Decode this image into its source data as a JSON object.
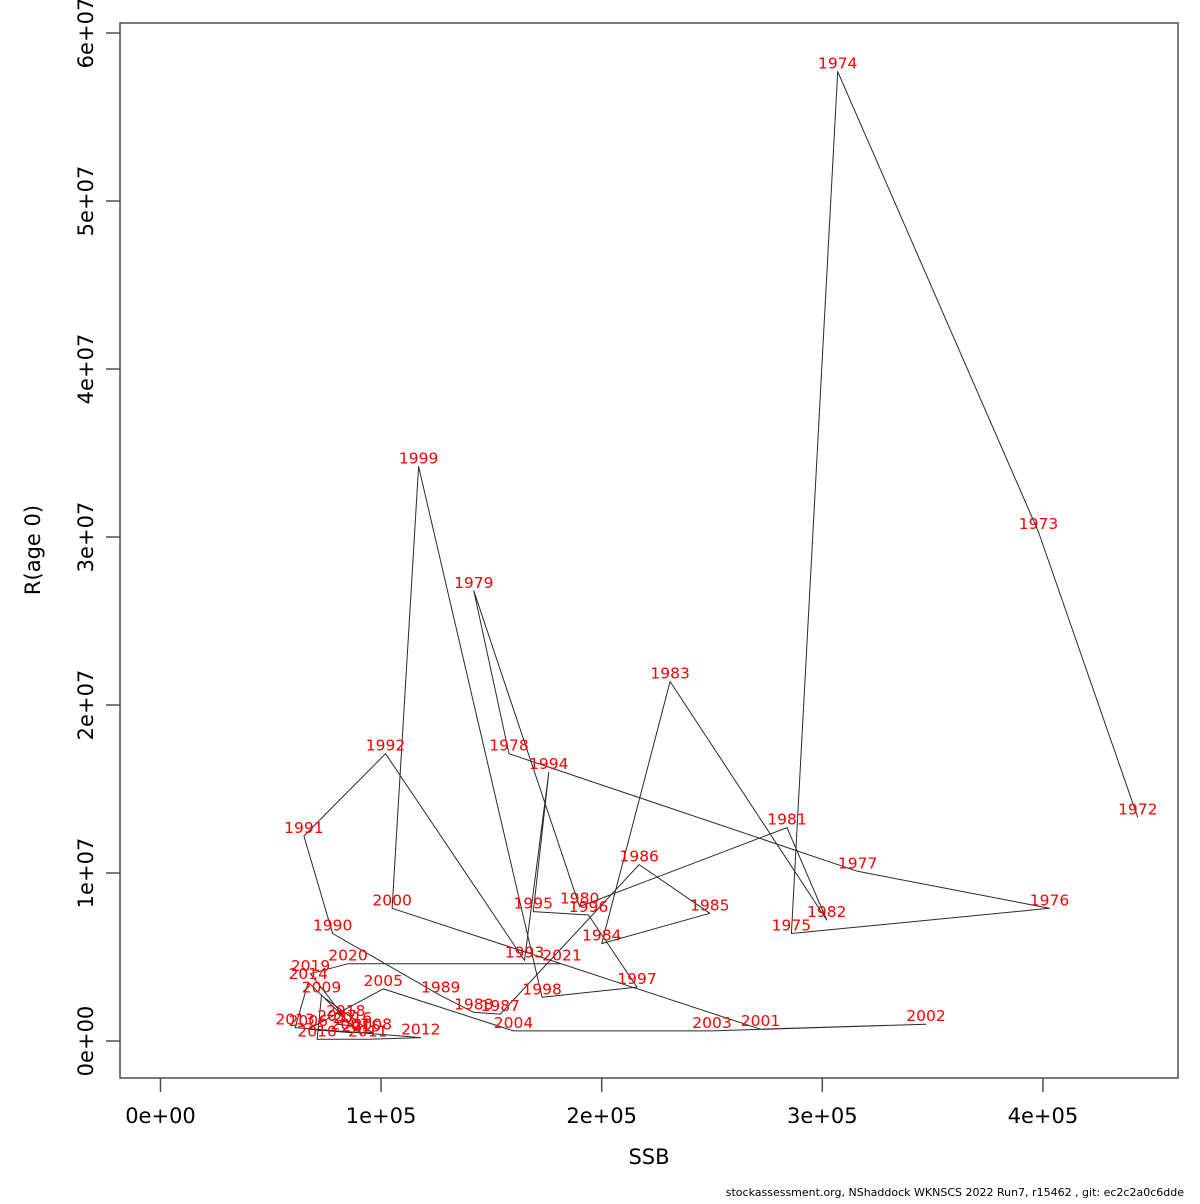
{
  "page": {
    "background": "#ffffff"
  },
  "footer": {
    "text": "stockassessment.org, NShaddock WKNSCS 2022 Run7, r15462 , git: ec2c2a0c6dde"
  },
  "chart_data": {
    "type": "scatter",
    "title": "",
    "xlabel": "SSB",
    "ylabel": "R(age 0)",
    "grid": false,
    "legend": null,
    "point_label_color": "#ff0000",
    "line_color": "#2a2a2a",
    "axis_color": "#4d4d4d",
    "tick_text_color": "#000000",
    "x_axis": {
      "tick_values": [
        0,
        100000,
        200000,
        300000,
        400000
      ],
      "tick_labels": [
        "0e+00",
        "1e+05",
        "2e+05",
        "3e+05",
        "4e+05"
      ],
      "range": [
        0,
        462000
      ]
    },
    "y_axis": {
      "tick_values": [
        0,
        10000000,
        20000000,
        30000000,
        40000000,
        50000000,
        60000000
      ],
      "tick_labels": [
        "0e+00",
        "1e+07",
        "2e+07",
        "3e+07",
        "4e+07",
        "5e+07",
        "6e+07"
      ],
      "range": [
        0,
        62500000
      ]
    },
    "series": [
      {
        "name": "recruitment-vs-ssb",
        "connected": true,
        "points": [
          {
            "year": "1972",
            "ssb": 443000,
            "r": 13300000
          },
          {
            "year": "1973",
            "ssb": 398000,
            "r": 30300000
          },
          {
            "year": "1974",
            "ssb": 307000,
            "r": 57700000
          },
          {
            "year": "1975",
            "ssb": 286000,
            "r": 6400000
          },
          {
            "year": "1976",
            "ssb": 403000,
            "r": 7900000
          },
          {
            "year": "1977",
            "ssb": 316000,
            "r": 10100000
          },
          {
            "year": "1978",
            "ssb": 158000,
            "r": 17100000
          },
          {
            "year": "1979",
            "ssb": 142000,
            "r": 26800000
          },
          {
            "year": "1980",
            "ssb": 190000,
            "r": 8000000
          },
          {
            "year": "1981",
            "ssb": 284000,
            "r": 12700000
          },
          {
            "year": "1982",
            "ssb": 302000,
            "r": 7200000
          },
          {
            "year": "1983",
            "ssb": 231000,
            "r": 21400000
          },
          {
            "year": "1984",
            "ssb": 200000,
            "r": 5800000
          },
          {
            "year": "1985",
            "ssb": 249000,
            "r": 7600000
          },
          {
            "year": "1986",
            "ssb": 217000,
            "r": 10500000
          },
          {
            "year": "1987",
            "ssb": 154000,
            "r": 1600000
          },
          {
            "year": "1988",
            "ssb": 142000,
            "r": 1700000
          },
          {
            "year": "1989",
            "ssb": 127000,
            "r": 2700000
          },
          {
            "year": "1990",
            "ssb": 78000,
            "r": 6400000
          },
          {
            "year": "1991",
            "ssb": 65000,
            "r": 12200000
          },
          {
            "year": "1992",
            "ssb": 102000,
            "r": 17100000
          },
          {
            "year": "1993",
            "ssb": 165000,
            "r": 4800000
          },
          {
            "year": "1994",
            "ssb": 176000,
            "r": 16000000
          },
          {
            "year": "1995",
            "ssb": 169000,
            "r": 7700000
          },
          {
            "year": "1996",
            "ssb": 194000,
            "r": 7500000
          },
          {
            "year": "1997",
            "ssb": 216000,
            "r": 3200000
          },
          {
            "year": "1998",
            "ssb": 173000,
            "r": 2600000
          },
          {
            "year": "1999",
            "ssb": 117000,
            "r": 34200000
          },
          {
            "year": "2000",
            "ssb": 105000,
            "r": 7900000
          },
          {
            "year": "2001",
            "ssb": 272000,
            "r": 700000
          },
          {
            "year": "2002",
            "ssb": 347000,
            "r": 1000000
          },
          {
            "year": "2003",
            "ssb": 250000,
            "r": 600000
          },
          {
            "year": "2004",
            "ssb": 160000,
            "r": 600000
          },
          {
            "year": "2005",
            "ssb": 101000,
            "r": 3100000
          },
          {
            "year": "2006",
            "ssb": 67000,
            "r": 700000
          },
          {
            "year": "2007",
            "ssb": 86000,
            "r": 500000
          },
          {
            "year": "2008",
            "ssb": 96000,
            "r": 500000
          },
          {
            "year": "2009",
            "ssb": 73000,
            "r": 2700000
          },
          {
            "year": "2010",
            "ssb": 71000,
            "r": 100000
          },
          {
            "year": "2011",
            "ssb": 94000,
            "r": 100000
          },
          {
            "year": "2012",
            "ssb": 118000,
            "r": 200000
          },
          {
            "year": "2013",
            "ssb": 61000,
            "r": 800000
          },
          {
            "year": "2014",
            "ssb": 67000,
            "r": 3500000
          },
          {
            "year": "2015",
            "ssb": 91000,
            "r": 400000
          },
          {
            "year": "2016",
            "ssb": 87000,
            "r": 900000
          },
          {
            "year": "2017",
            "ssb": 80000,
            "r": 1000000
          },
          {
            "year": "2018",
            "ssb": 84000,
            "r": 1300000
          },
          {
            "year": "2019",
            "ssb": 68000,
            "r": 4000000
          },
          {
            "year": "2020",
            "ssb": 85000,
            "r": 4600000
          },
          {
            "year": "2021",
            "ssb": 182000,
            "r": 4600000
          }
        ]
      }
    ]
  }
}
